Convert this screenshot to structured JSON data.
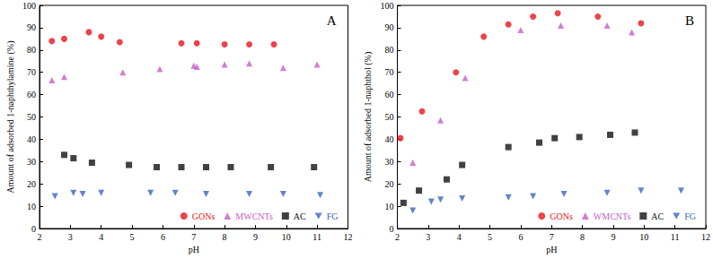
{
  "chart_data": [
    {
      "type": "scatter",
      "title": "A",
      "x_label": "pH",
      "y_label": "Amount of adsorbed 1-naphthylamine (%)",
      "xlim": [
        2,
        12
      ],
      "xticks": [
        2,
        3,
        4,
        5,
        6,
        7,
        8,
        9,
        10,
        11,
        12
      ],
      "ylim": [
        0,
        100
      ],
      "yticks": [
        0,
        10,
        20,
        30,
        40,
        50,
        60,
        70,
        80,
        90,
        100
      ],
      "grid": false,
      "legend": "lower right",
      "series": [
        {
          "name": "GONs",
          "color": "#e8141c",
          "marker": "circle",
          "x": [
            2.4,
            2.8,
            3.6,
            4.0,
            4.6,
            6.6,
            7.1,
            8.0,
            8.8,
            9.6
          ],
          "values": [
            84,
            85,
            88,
            86,
            83.5,
            83,
            83,
            82.5,
            82.5,
            82.5
          ]
        },
        {
          "name": "MWCNTs",
          "color": "#c45ec8",
          "marker": "triangle",
          "x": [
            2.4,
            2.8,
            4.7,
            5.9,
            7.0,
            7.1,
            8.0,
            8.8,
            9.9,
            11.0
          ],
          "values": [
            66.5,
            68,
            70,
            71.5,
            73,
            72.5,
            73.5,
            74,
            72,
            73.5
          ]
        },
        {
          "name": "AC",
          "color": "#111111",
          "marker": "square",
          "x": [
            2.8,
            3.1,
            3.7,
            4.9,
            5.8,
            6.6,
            7.4,
            8.2,
            9.5,
            10.9
          ],
          "values": [
            33,
            31.5,
            29.5,
            28.5,
            27.5,
            27.5,
            27.5,
            27.5,
            27.5,
            27.5
          ]
        },
        {
          "name": "FG",
          "color": "#3a64c0",
          "marker": "triangle_down",
          "x": [
            2.5,
            3.1,
            3.4,
            4.0,
            5.6,
            6.4,
            7.4,
            8.8,
            9.9,
            11.1
          ],
          "values": [
            14.5,
            16,
            15.5,
            16,
            16,
            16,
            15.5,
            15.5,
            15.5,
            15
          ]
        }
      ]
    },
    {
      "type": "scatter",
      "title": "B",
      "x_label": "pH",
      "y_label": "Amount of adsorbed 1-naphthol (%)",
      "xlim": [
        2,
        12
      ],
      "xticks": [
        2,
        3,
        4,
        5,
        6,
        7,
        8,
        9,
        10,
        11,
        12
      ],
      "ylim": [
        0,
        100
      ],
      "yticks": [
        0,
        10,
        20,
        30,
        40,
        50,
        60,
        70,
        80,
        90,
        100
      ],
      "grid": false,
      "legend": "lower right",
      "series": [
        {
          "name": "GONs",
          "color": "#e8141c",
          "marker": "circle",
          "x": [
            2.1,
            2.8,
            3.9,
            4.8,
            5.6,
            6.4,
            7.2,
            8.5,
            9.9
          ],
          "values": [
            40.5,
            52.5,
            70,
            86,
            91.5,
            95,
            96.5,
            95,
            92
          ]
        },
        {
          "name": "WMCNTs",
          "color": "#c45ec8",
          "marker": "triangle",
          "x": [
            2.5,
            3.4,
            4.2,
            6.0,
            7.3,
            8.8,
            9.6
          ],
          "values": [
            29.5,
            48.5,
            67.5,
            89,
            91,
            91,
            88
          ]
        },
        {
          "name": "AC",
          "color": "#111111",
          "marker": "square",
          "x": [
            2.2,
            2.7,
            3.6,
            4.1,
            5.6,
            6.6,
            7.1,
            7.9,
            8.9,
            9.7
          ],
          "values": [
            11.5,
            17,
            22,
            28.5,
            36.5,
            38.5,
            40.5,
            41,
            42,
            43
          ]
        },
        {
          "name": "FG",
          "color": "#3a64c0",
          "marker": "triangle_down",
          "x": [
            2.5,
            3.1,
            3.4,
            4.1,
            5.6,
            6.4,
            7.4,
            8.8,
            9.9,
            11.2
          ],
          "values": [
            8,
            12,
            13,
            13.5,
            14,
            14.5,
            15.5,
            16,
            17,
            17
          ]
        }
      ]
    }
  ]
}
